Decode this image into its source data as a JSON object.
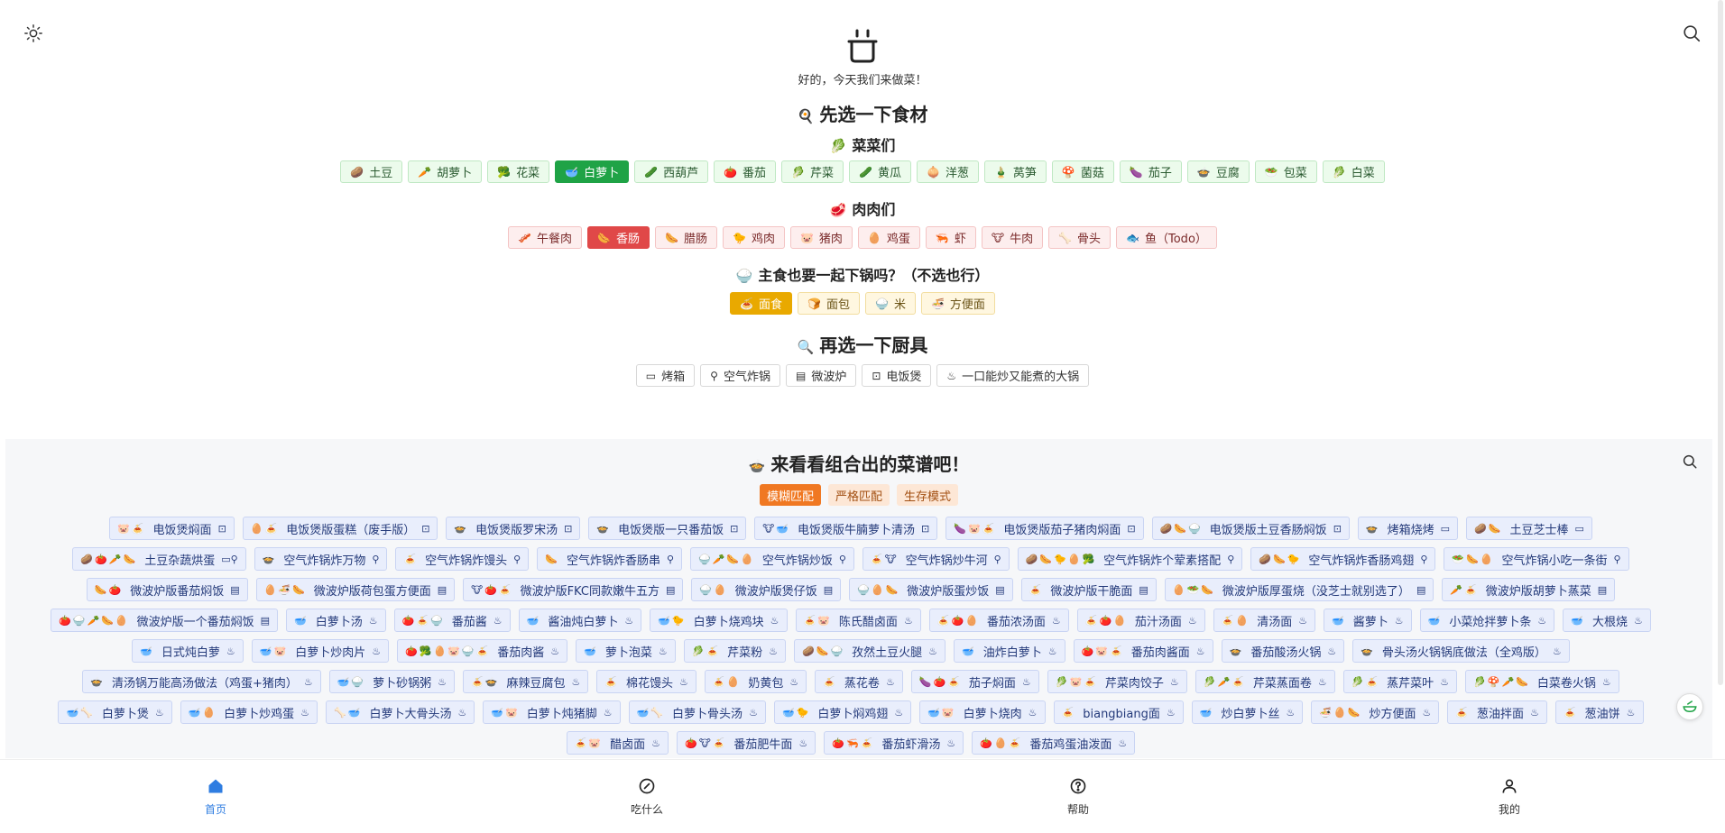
{
  "header": {
    "subtitle": "好的，今天我们来做菜！"
  },
  "ingredients_section": {
    "title": "先选一下食材",
    "emoji": "🍳",
    "veg_group": {
      "title": "菜菜们",
      "emoji": "🥬",
      "items": [
        {
          "label": "土豆",
          "emoji": "🥔",
          "active": false
        },
        {
          "label": "胡萝卜",
          "emoji": "🥕",
          "active": false
        },
        {
          "label": "花菜",
          "emoji": "🥦",
          "active": false
        },
        {
          "label": "白萝卜",
          "emoji": "🥣",
          "active": true
        },
        {
          "label": "西葫芦",
          "emoji": "🥒",
          "active": false
        },
        {
          "label": "番茄",
          "emoji": "🍅",
          "active": false
        },
        {
          "label": "芹菜",
          "emoji": "🥬",
          "active": false
        },
        {
          "label": "黄瓜",
          "emoji": "🥒",
          "active": false
        },
        {
          "label": "洋葱",
          "emoji": "🧅",
          "active": false
        },
        {
          "label": "莴笋",
          "emoji": "🎍",
          "active": false
        },
        {
          "label": "菌菇",
          "emoji": "🍄",
          "active": false
        },
        {
          "label": "茄子",
          "emoji": "🍆",
          "active": false
        },
        {
          "label": "豆腐",
          "emoji": "🍲",
          "active": false
        },
        {
          "label": "包菜",
          "emoji": "🥗",
          "active": false
        },
        {
          "label": "白菜",
          "emoji": "🥬",
          "active": false
        }
      ]
    },
    "meat_group": {
      "title": "肉肉们",
      "emoji": "🥩",
      "items": [
        {
          "label": "午餐肉",
          "emoji": "🥓",
          "active": false
        },
        {
          "label": "香肠",
          "emoji": "🌭",
          "active": true
        },
        {
          "label": "腊肠",
          "emoji": "🌭",
          "active": false
        },
        {
          "label": "鸡肉",
          "emoji": "🐤",
          "active": false
        },
        {
          "label": "猪肉",
          "emoji": "🐷",
          "active": false
        },
        {
          "label": "鸡蛋",
          "emoji": "🥚",
          "active": false
        },
        {
          "label": "虾",
          "emoji": "🦐",
          "active": false
        },
        {
          "label": "牛肉",
          "emoji": "🐮",
          "active": false
        },
        {
          "label": "骨头",
          "emoji": "🦴",
          "active": false
        },
        {
          "label": "鱼（Todo）",
          "emoji": "🐟",
          "active": false
        }
      ]
    },
    "staple_group": {
      "title": "主食也要一起下锅吗？（不选也行）",
      "emoji": "🍚",
      "items": [
        {
          "label": "面食",
          "emoji": "🍝",
          "active": true
        },
        {
          "label": "面包",
          "emoji": "🍞",
          "active": false
        },
        {
          "label": "米",
          "emoji": "🍚",
          "active": false
        },
        {
          "label": "方便面",
          "emoji": "🍜",
          "active": false
        }
      ]
    }
  },
  "tools_section": {
    "title": "再选一下厨具",
    "emoji": "🔍",
    "items": [
      {
        "label": "烤箱",
        "icon": "oven-icon",
        "glyph": "▭"
      },
      {
        "label": "空气炸锅",
        "icon": "air-fryer-icon",
        "glyph": "⚲"
      },
      {
        "label": "微波炉",
        "icon": "microwave-icon",
        "glyph": "▤"
      },
      {
        "label": "电饭煲",
        "icon": "rice-cooker-icon",
        "glyph": "⊡"
      },
      {
        "label": "一口能炒又能煮的大锅",
        "icon": "pot-icon",
        "glyph": "♨"
      }
    ]
  },
  "results_section": {
    "title": "来看看组合出的菜谱吧！",
    "emoji": "🍲",
    "modes": [
      {
        "label": "模糊匹配",
        "active": true
      },
      {
        "label": "严格匹配",
        "active": false
      },
      {
        "label": "生存模式",
        "active": false
      }
    ],
    "recipes": [
      {
        "emoji": "🐷🍝",
        "name": "电饭煲焖面",
        "tool": "⊡"
      },
      {
        "emoji": "🥚🍝",
        "name": "电饭煲版蛋糕（废手版）",
        "tool": "⊡"
      },
      {
        "emoji": "🍲",
        "name": "电饭煲版罗宋汤",
        "tool": "⊡"
      },
      {
        "emoji": "🍲",
        "name": "电饭煲版一只番茄饭",
        "tool": "⊡"
      },
      {
        "emoji": "🐮🥣",
        "name": "电饭煲版牛腩萝卜清汤",
        "tool": "⊡"
      },
      {
        "emoji": "🍆🐷🍝",
        "name": "电饭煲版茄子猪肉焖面",
        "tool": "⊡"
      },
      {
        "emoji": "🥔🌭🍚",
        "name": "电饭煲版土豆香肠焖饭",
        "tool": "⊡"
      },
      {
        "emoji": "🍲",
        "name": "烤箱烧烤",
        "tool": "▭"
      },
      {
        "emoji": "🥔🌭",
        "name": "土豆芝士棒",
        "tool": "▭"
      },
      {
        "emoji": "🥔🍅🥕🌭",
        "name": "土豆杂蔬烘蛋",
        "tool": "▭⚲"
      },
      {
        "emoji": "🍲",
        "name": "空气炸锅炸万物",
        "tool": "⚲"
      },
      {
        "emoji": "🍝",
        "name": "空气炸锅炸馒头",
        "tool": "⚲"
      },
      {
        "emoji": "🌭",
        "name": "空气炸锅炸香肠串",
        "tool": "⚲"
      },
      {
        "emoji": "🍚🥕🌭🥚",
        "name": "空气炸锅炒饭",
        "tool": "⚲"
      },
      {
        "emoji": "🍝🐮",
        "name": "空气炸锅炒牛河",
        "tool": "⚲"
      },
      {
        "emoji": "🥔🌭🐤🥚🥦",
        "name": "空气炸锅炸个荤素搭配",
        "tool": "⚲"
      },
      {
        "emoji": "🥔🌭🐤",
        "name": "空气炸锅炸香肠鸡翅",
        "tool": "⚲"
      },
      {
        "emoji": "🥗🌭🥚",
        "name": "空气炸锅小吃一条街",
        "tool": "⚲"
      },
      {
        "emoji": "🌭🍅",
        "name": "微波炉版番茄焖饭",
        "tool": "▤"
      },
      {
        "emoji": "🥚🍜🌭",
        "name": "微波炉版荷包蛋方便面",
        "tool": "▤"
      },
      {
        "emoji": "🐮🍅🍝",
        "name": "微波炉版FKC同款嫩牛五方",
        "tool": "▤"
      },
      {
        "emoji": "🍚🥚",
        "name": "微波炉版煲仔饭",
        "tool": "▤"
      },
      {
        "emoji": "🍚🥚🌭",
        "name": "微波炉版蛋炒饭",
        "tool": "▤"
      },
      {
        "emoji": "🍝",
        "name": "微波炉版干脆面",
        "tool": "▤"
      },
      {
        "emoji": "🥚🥗🌭",
        "name": "微波炉版厚蛋烧（没芝士就别选了）",
        "tool": "▤"
      },
      {
        "emoji": "🥕🍝",
        "name": "微波炉版胡萝卜蒸菜",
        "tool": "▤"
      },
      {
        "emoji": "🍅🍚🥕🌭🥚",
        "name": "微波炉版一个番茄焖饭",
        "tool": "▤"
      },
      {
        "emoji": "🥣",
        "name": "白萝卜汤",
        "tool": "♨"
      },
      {
        "emoji": "🍅🍝🍚",
        "name": "番茄酱",
        "tool": "♨"
      },
      {
        "emoji": "🥣",
        "name": "酱油炖白萝卜",
        "tool": "♨"
      },
      {
        "emoji": "🥣🐤",
        "name": "白萝卜烧鸡块",
        "tool": "♨"
      },
      {
        "emoji": "🍝🐷",
        "name": "陈氏醋卤面",
        "tool": "♨"
      },
      {
        "emoji": "🍝🍅🥚",
        "name": "番茄浓汤面",
        "tool": "♨"
      },
      {
        "emoji": "🍝🍅🥚",
        "name": "茄汁汤面",
        "tool": "♨"
      },
      {
        "emoji": "🍝🥚",
        "name": "清汤面",
        "tool": "♨"
      },
      {
        "emoji": "🥣",
        "name": "酱萝卜",
        "tool": "♨"
      },
      {
        "emoji": "🥣",
        "name": "小菜炝拌萝卜条",
        "tool": "♨"
      },
      {
        "emoji": "🥣",
        "name": "大根烧",
        "tool": "♨"
      },
      {
        "emoji": "🥣",
        "name": "日式炖白萝",
        "tool": "♨"
      },
      {
        "emoji": "🥣🐷",
        "name": "白萝卜炒肉片",
        "tool": "♨"
      },
      {
        "emoji": "🍅🥦🥚🐷🍚🍝",
        "name": "番茄肉酱",
        "tool": "♨"
      },
      {
        "emoji": "🥣",
        "name": "萝卜泡菜",
        "tool": "♨"
      },
      {
        "emoji": "🥬🍝",
        "name": "芹菜粉",
        "tool": "♨"
      },
      {
        "emoji": "🥔🌭🍚",
        "name": "孜然土豆火腿",
        "tool": "♨"
      },
      {
        "emoji": "🥣",
        "name": "油炸白萝卜",
        "tool": "♨"
      },
      {
        "emoji": "🍅🐷🍝",
        "name": "番茄肉酱面",
        "tool": "♨"
      },
      {
        "emoji": "🍲",
        "name": "番茄酸汤火锅",
        "tool": "♨"
      },
      {
        "emoji": "🍲",
        "name": "骨头汤火锅锅底做法（全鸡版）",
        "tool": "♨"
      },
      {
        "emoji": "🍲",
        "name": "清汤锅万能高汤做法（鸡蛋+猪肉）",
        "tool": "♨"
      },
      {
        "emoji": "🥣🍚",
        "name": "萝卜砂锅粥",
        "tool": "♨"
      },
      {
        "emoji": "🍝🍲",
        "name": "麻辣豆腐包",
        "tool": "♨"
      },
      {
        "emoji": "🍝",
        "name": "棉花馒头",
        "tool": "♨"
      },
      {
        "emoji": "🍝🥚",
        "name": "奶黄包",
        "tool": "♨"
      },
      {
        "emoji": "🍝",
        "name": "蒸花卷",
        "tool": "♨"
      },
      {
        "emoji": "🍆🍅🍝",
        "name": "茄子焖面",
        "tool": "♨"
      },
      {
        "emoji": "🥬🐷🍝",
        "name": "芹菜肉饺子",
        "tool": "♨"
      },
      {
        "emoji": "🥬🥕🍝",
        "name": "芹菜蒸面卷",
        "tool": "♨"
      },
      {
        "emoji": "🥬🍝",
        "name": "蒸芹菜叶",
        "tool": "♨"
      },
      {
        "emoji": "🥬🍄🥕🌭",
        "name": "白菜卷火锅",
        "tool": "♨"
      },
      {
        "emoji": "🥣🦴",
        "name": "白萝卜煲",
        "tool": "♨"
      },
      {
        "emoji": "🥣🥚",
        "name": "白萝卜炒鸡蛋",
        "tool": "♨"
      },
      {
        "emoji": "🦴🥣",
        "name": "白萝卜大骨头汤",
        "tool": "♨"
      },
      {
        "emoji": "🥣🐷",
        "name": "白萝卜炖猪脚",
        "tool": "♨"
      },
      {
        "emoji": "🥣🦴",
        "name": "白萝卜骨头汤",
        "tool": "♨"
      },
      {
        "emoji": "🥣🐤",
        "name": "白萝卜焖鸡翅",
        "tool": "♨"
      },
      {
        "emoji": "🥣🐷",
        "name": "白萝卜烧肉",
        "tool": "♨"
      },
      {
        "emoji": "🍝",
        "name": "biangbiang面",
        "tool": "♨"
      },
      {
        "emoji": "🥣",
        "name": "炒白萝卜丝",
        "tool": "♨"
      },
      {
        "emoji": "🍜🥚🌭",
        "name": "炒方便面",
        "tool": "♨"
      },
      {
        "emoji": "🍝",
        "name": "葱油拌面",
        "tool": "♨"
      },
      {
        "emoji": "🍝",
        "name": "葱油饼",
        "tool": "♨"
      },
      {
        "emoji": "🍝🐷",
        "name": "醋卤面",
        "tool": "♨"
      },
      {
        "emoji": "🍅🐮🍝",
        "name": "番茄肥牛面",
        "tool": "♨"
      },
      {
        "emoji": "🍅🦐🍝",
        "name": "番茄虾滑汤",
        "tool": "♨"
      },
      {
        "emoji": "🍅🥚🍝",
        "name": "番茄鸡蛋油泼面",
        "tool": "♨"
      }
    ]
  },
  "bottom_nav": [
    {
      "label": "首页",
      "icon": "home-icon",
      "active": true
    },
    {
      "label": "吃什么",
      "icon": "compass-icon",
      "active": false
    },
    {
      "label": "帮助",
      "icon": "help-icon",
      "active": false
    },
    {
      "label": "我的",
      "icon": "user-icon",
      "active": false
    }
  ],
  "colors": {
    "veg_active": "#1fa346",
    "meat_active": "#e04848",
    "staple_active": "#e9a900",
    "mode_active": "#f07822",
    "nav_active": "#2f7de1"
  }
}
